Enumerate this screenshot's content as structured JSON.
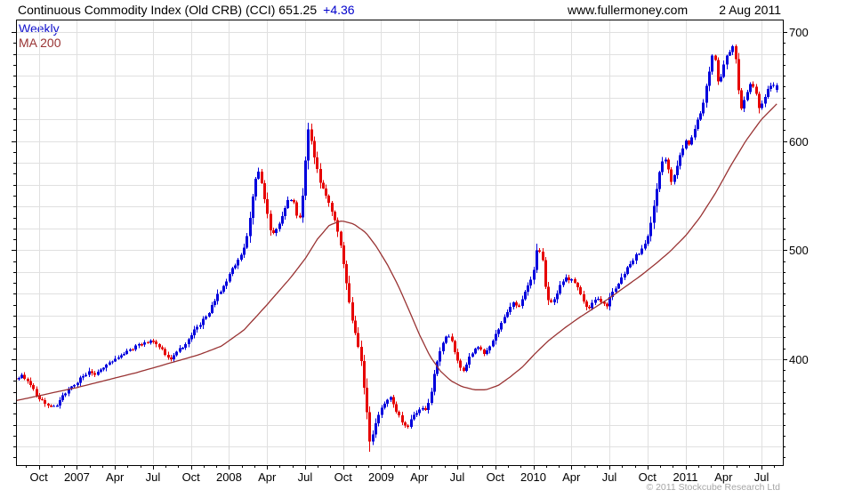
{
  "header": {
    "title": "Continuous Commodity Index (Old CRB) (CCI) 651.25",
    "change": "+4.36",
    "site": "www.fullermoney.com",
    "date": "2 Aug 2011"
  },
  "legend": {
    "timeframe": "Weekly",
    "ma": "MA 200"
  },
  "footer": {
    "copyright": "© 2011 Stockcube Research Ltd"
  },
  "chart_data": {
    "type": "candlestick",
    "title": "Continuous Commodity Index (Old CRB) (CCI)",
    "timeframe": "Weekly",
    "overlay": "MA 200",
    "last_close": 651.25,
    "last_change": 4.36,
    "x_axis": {
      "t_start": 2006.6,
      "t_end": 2011.64,
      "ticks": [
        {
          "t": 2006.75,
          "label": "Oct"
        },
        {
          "t": 2007.0,
          "label": "2007"
        },
        {
          "t": 2007.25,
          "label": "Apr"
        },
        {
          "t": 2007.5,
          "label": "Jul"
        },
        {
          "t": 2007.75,
          "label": "Oct"
        },
        {
          "t": 2008.0,
          "label": "2008"
        },
        {
          "t": 2008.25,
          "label": "Apr"
        },
        {
          "t": 2008.5,
          "label": "Jul"
        },
        {
          "t": 2008.75,
          "label": "Oct"
        },
        {
          "t": 2009.0,
          "label": "2009"
        },
        {
          "t": 2009.25,
          "label": "Apr"
        },
        {
          "t": 2009.5,
          "label": "Jul"
        },
        {
          "t": 2009.75,
          "label": "Oct"
        },
        {
          "t": 2010.0,
          "label": "2010"
        },
        {
          "t": 2010.25,
          "label": "Apr"
        },
        {
          "t": 2010.5,
          "label": "Jul"
        },
        {
          "t": 2010.75,
          "label": "Oct"
        },
        {
          "t": 2011.0,
          "label": "2011"
        },
        {
          "t": 2011.25,
          "label": "Apr"
        },
        {
          "t": 2011.5,
          "label": "Jul"
        }
      ]
    },
    "y_axis": {
      "v_min": 302.9,
      "v_max": 711.5,
      "grid_step": 20,
      "tick_step": 10,
      "labels": [
        400,
        500,
        600,
        700
      ]
    },
    "price_path": [
      [
        2006.6,
        381
      ],
      [
        2006.64,
        386
      ],
      [
        2006.68,
        380
      ],
      [
        2006.72,
        371
      ],
      [
        2006.76,
        363
      ],
      [
        2006.8,
        358
      ],
      [
        2006.84,
        355
      ],
      [
        2006.88,
        360
      ],
      [
        2006.92,
        368
      ],
      [
        2006.96,
        374
      ],
      [
        2007.0,
        379
      ],
      [
        2007.04,
        384
      ],
      [
        2007.08,
        390
      ],
      [
        2007.12,
        386
      ],
      [
        2007.16,
        391
      ],
      [
        2007.2,
        395
      ],
      [
        2007.25,
        399
      ],
      [
        2007.3,
        404
      ],
      [
        2007.35,
        408
      ],
      [
        2007.4,
        413
      ],
      [
        2007.45,
        416
      ],
      [
        2007.5,
        418
      ],
      [
        2007.54,
        412
      ],
      [
        2007.58,
        405
      ],
      [
        2007.62,
        400
      ],
      [
        2007.66,
        406
      ],
      [
        2007.7,
        412
      ],
      [
        2007.74,
        420
      ],
      [
        2007.78,
        428
      ],
      [
        2007.82,
        434
      ],
      [
        2007.86,
        440
      ],
      [
        2007.9,
        452
      ],
      [
        2007.94,
        462
      ],
      [
        2007.98,
        470
      ],
      [
        2008.02,
        482
      ],
      [
        2008.06,
        490
      ],
      [
        2008.1,
        502
      ],
      [
        2008.13,
        520
      ],
      [
        2008.16,
        550
      ],
      [
        2008.19,
        576
      ],
      [
        2008.22,
        560
      ],
      [
        2008.25,
        536
      ],
      [
        2008.28,
        512
      ],
      [
        2008.31,
        519
      ],
      [
        2008.34,
        528
      ],
      [
        2008.37,
        540
      ],
      [
        2008.4,
        549
      ],
      [
        2008.43,
        542
      ],
      [
        2008.46,
        524
      ],
      [
        2008.49,
        556
      ],
      [
        2008.52,
        611
      ],
      [
        2008.54,
        602
      ],
      [
        2008.57,
        580
      ],
      [
        2008.6,
        563
      ],
      [
        2008.63,
        551
      ],
      [
        2008.66,
        543
      ],
      [
        2008.69,
        530
      ],
      [
        2008.72,
        514
      ],
      [
        2008.75,
        492
      ],
      [
        2008.78,
        462
      ],
      [
        2008.81,
        435
      ],
      [
        2008.84,
        418
      ],
      [
        2008.87,
        398
      ],
      [
        2008.89,
        372
      ],
      [
        2008.91,
        348
      ],
      [
        2008.93,
        322
      ],
      [
        2008.96,
        338
      ],
      [
        2008.99,
        350
      ],
      [
        2009.02,
        360
      ],
      [
        2009.06,
        366
      ],
      [
        2009.1,
        353
      ],
      [
        2009.14,
        341
      ],
      [
        2009.17,
        337
      ],
      [
        2009.21,
        347
      ],
      [
        2009.25,
        355
      ],
      [
        2009.29,
        353
      ],
      [
        2009.32,
        362
      ],
      [
        2009.36,
        394
      ],
      [
        2009.4,
        412
      ],
      [
        2009.44,
        423
      ],
      [
        2009.47,
        414
      ],
      [
        2009.51,
        396
      ],
      [
        2009.54,
        389
      ],
      [
        2009.57,
        399
      ],
      [
        2009.6,
        406
      ],
      [
        2009.64,
        411
      ],
      [
        2009.68,
        406
      ],
      [
        2009.72,
        414
      ],
      [
        2009.76,
        424
      ],
      [
        2009.8,
        437
      ],
      [
        2009.84,
        446
      ],
      [
        2009.87,
        452
      ],
      [
        2009.9,
        446
      ],
      [
        2009.93,
        457
      ],
      [
        2009.97,
        468
      ],
      [
        2010.0,
        480
      ],
      [
        2010.03,
        504
      ],
      [
        2010.06,
        494
      ],
      [
        2010.08,
        466
      ],
      [
        2010.11,
        450
      ],
      [
        2010.14,
        456
      ],
      [
        2010.18,
        468
      ],
      [
        2010.22,
        475
      ],
      [
        2010.26,
        472
      ],
      [
        2010.3,
        464
      ],
      [
        2010.33,
        452
      ],
      [
        2010.36,
        446
      ],
      [
        2010.39,
        452
      ],
      [
        2010.42,
        458
      ],
      [
        2010.45,
        451
      ],
      [
        2010.48,
        448
      ],
      [
        2010.51,
        460
      ],
      [
        2010.55,
        468
      ],
      [
        2010.59,
        477
      ],
      [
        2010.63,
        487
      ],
      [
        2010.67,
        494
      ],
      [
        2010.71,
        500
      ],
      [
        2010.75,
        511
      ],
      [
        2010.79,
        538
      ],
      [
        2010.83,
        570
      ],
      [
        2010.86,
        589
      ],
      [
        2010.89,
        572
      ],
      [
        2010.91,
        560
      ],
      [
        2010.94,
        574
      ],
      [
        2010.97,
        589
      ],
      [
        2011.0,
        600
      ],
      [
        2011.03,
        597
      ],
      [
        2011.06,
        610
      ],
      [
        2011.09,
        622
      ],
      [
        2011.12,
        636
      ],
      [
        2011.15,
        658
      ],
      [
        2011.18,
        680
      ],
      [
        2011.2,
        672
      ],
      [
        2011.22,
        650
      ],
      [
        2011.25,
        668
      ],
      [
        2011.28,
        680
      ],
      [
        2011.31,
        687
      ],
      [
        2011.33,
        676
      ],
      [
        2011.35,
        648
      ],
      [
        2011.37,
        630
      ],
      [
        2011.4,
        644
      ],
      [
        2011.43,
        652
      ],
      [
        2011.46,
        647
      ],
      [
        2011.48,
        629
      ],
      [
        2011.51,
        636
      ],
      [
        2011.54,
        648
      ],
      [
        2011.57,
        654
      ],
      [
        2011.6,
        649
      ],
      [
        2011.615,
        651.25
      ]
    ],
    "ma_path": [
      [
        2006.6,
        362
      ],
      [
        2006.8,
        368
      ],
      [
        2007.0,
        374
      ],
      [
        2007.2,
        381
      ],
      [
        2007.4,
        388
      ],
      [
        2007.6,
        396
      ],
      [
        2007.8,
        404
      ],
      [
        2007.95,
        412
      ],
      [
        2008.1,
        427
      ],
      [
        2008.25,
        450
      ],
      [
        2008.4,
        474
      ],
      [
        2008.5,
        492
      ],
      [
        2008.58,
        510
      ],
      [
        2008.66,
        523
      ],
      [
        2008.74,
        527
      ],
      [
        2008.82,
        524
      ],
      [
        2008.9,
        516
      ],
      [
        2008.97,
        503
      ],
      [
        2009.04,
        487
      ],
      [
        2009.11,
        468
      ],
      [
        2009.18,
        446
      ],
      [
        2009.25,
        423
      ],
      [
        2009.32,
        403
      ],
      [
        2009.39,
        389
      ],
      [
        2009.46,
        380
      ],
      [
        2009.53,
        375
      ],
      [
        2009.61,
        372
      ],
      [
        2009.69,
        372
      ],
      [
        2009.77,
        376
      ],
      [
        2009.85,
        384
      ],
      [
        2009.93,
        393
      ],
      [
        2010.01,
        405
      ],
      [
        2010.1,
        417
      ],
      [
        2010.2,
        428
      ],
      [
        2010.3,
        438
      ],
      [
        2010.4,
        447
      ],
      [
        2010.5,
        456
      ],
      [
        2010.6,
        466
      ],
      [
        2010.7,
        476
      ],
      [
        2010.8,
        487
      ],
      [
        2010.9,
        499
      ],
      [
        2011.0,
        513
      ],
      [
        2011.1,
        531
      ],
      [
        2011.2,
        553
      ],
      [
        2011.3,
        578
      ],
      [
        2011.4,
        601
      ],
      [
        2011.5,
        620
      ],
      [
        2011.62,
        637
      ]
    ],
    "colors": {
      "up": "#0000dd",
      "down": "#e60000",
      "ma": "#993333",
      "grid": "#e0e0e0",
      "axis": "#000000",
      "text": "#000000"
    }
  }
}
